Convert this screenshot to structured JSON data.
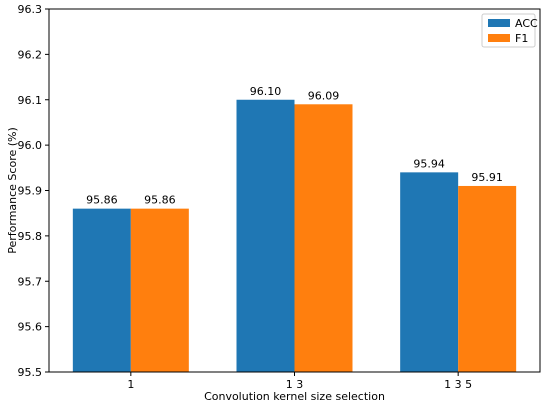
{
  "chart_data": {
    "type": "bar",
    "title": "",
    "xlabel": "Convolution kernel size selection",
    "ylabel": "Performance Score (%)",
    "categories": [
      "1",
      "1 3",
      "1 3 5"
    ],
    "series": [
      {
        "name": "ACC",
        "values": [
          95.86,
          96.1,
          95.94
        ],
        "labels": [
          "95.86",
          "96.10",
          "95.94"
        ],
        "color": "#1f77b4"
      },
      {
        "name": "F1",
        "values": [
          95.86,
          96.09,
          95.91
        ],
        "labels": [
          "95.86",
          "96.09",
          "95.91"
        ],
        "color": "#ff7f0e"
      }
    ],
    "ylim": [
      95.5,
      96.3
    ],
    "yticks": [
      "95.5",
      "95.6",
      "95.7",
      "95.8",
      "95.9",
      "96.0",
      "96.1",
      "96.2",
      "96.3"
    ],
    "grid": false,
    "legend_position": "top-right"
  }
}
